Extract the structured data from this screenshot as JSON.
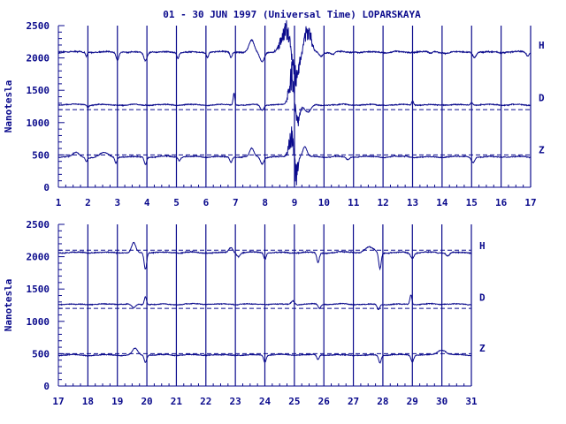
{
  "title": "01 - 30 JUN 1997 (Universal Time) LOPARSKAYA",
  "colors": {
    "trace": "#0a0a8c",
    "background": "#ffffff"
  },
  "chart_data": [
    {
      "type": "line",
      "ylabel": "Nanotesla",
      "ylim": [
        0,
        2500
      ],
      "yticks": [
        "0",
        "500",
        "1000",
        "1500",
        "2000",
        "2500"
      ],
      "xlim": [
        1,
        17
      ],
      "xticks": [
        "1",
        "2",
        "3",
        "4",
        "5",
        "6",
        "7",
        "8",
        "9",
        "10",
        "11",
        "12",
        "13",
        "14",
        "15",
        "16",
        "17"
      ],
      "grid": "vertical lines at each day",
      "series": [
        {
          "name": "H",
          "baseline": 2090,
          "noise": 18,
          "events": [
            [
              1.95,
              -60,
              0.04
            ],
            [
              3.0,
              -110,
              0.06
            ],
            [
              3.95,
              -130,
              0.08
            ],
            [
              5.05,
              -90,
              0.05
            ],
            [
              6.05,
              -80,
              0.05
            ],
            [
              6.85,
              -90,
              0.05
            ],
            [
              7.55,
              180,
              0.12
            ],
            [
              7.9,
              -140,
              0.1
            ],
            [
              8.7,
              400,
              0.2
            ],
            [
              9.05,
              -420,
              0.15
            ],
            [
              9.45,
              380,
              0.15
            ],
            [
              9.9,
              -60,
              0.08
            ],
            [
              10.3,
              -40,
              0.08
            ],
            [
              13.6,
              -30,
              0.1
            ],
            [
              15.1,
              -80,
              0.08
            ],
            [
              16.9,
              -60,
              0.06
            ]
          ]
        },
        {
          "name": "D",
          "baseline": 1275,
          "noise": 14,
          "dashed": 1200,
          "events": [
            [
              2.0,
              -40,
              0.05
            ],
            [
              6.95,
              180,
              0.04
            ],
            [
              7.9,
              -80,
              0.08
            ],
            [
              8.9,
              550,
              0.12
            ],
            [
              9.1,
              -300,
              0.1
            ],
            [
              9.45,
              -120,
              0.15
            ],
            [
              13.0,
              60,
              0.05
            ],
            [
              15.0,
              40,
              0.06
            ]
          ]
        },
        {
          "name": "Z",
          "baseline": 470,
          "noise": 14,
          "dashed": 500,
          "events": [
            [
              1.6,
              70,
              0.15
            ],
            [
              1.95,
              -60,
              0.05
            ],
            [
              2.55,
              60,
              0.2
            ],
            [
              2.95,
              -90,
              0.05
            ],
            [
              3.95,
              -110,
              0.06
            ],
            [
              5.1,
              -60,
              0.06
            ],
            [
              6.85,
              -80,
              0.06
            ],
            [
              7.55,
              130,
              0.1
            ],
            [
              7.9,
              -100,
              0.08
            ],
            [
              8.9,
              380,
              0.12
            ],
            [
              9.05,
              -400,
              0.08
            ],
            [
              9.35,
              150,
              0.1
            ],
            [
              10.8,
              -40,
              0.08
            ],
            [
              15.05,
              -80,
              0.08
            ]
          ]
        }
      ]
    },
    {
      "type": "line",
      "ylabel": "Nanotesla",
      "ylim": [
        0,
        2500
      ],
      "yticks": [
        "0",
        "500",
        "1000",
        "1500",
        "2000",
        "2500"
      ],
      "xlim": [
        17,
        31
      ],
      "xticks": [
        "17",
        "18",
        "19",
        "20",
        "21",
        "22",
        "23",
        "24",
        "25",
        "26",
        "27",
        "28",
        "29",
        "30",
        "31"
      ],
      "grid": "vertical lines at each day",
      "series": [
        {
          "name": "H",
          "baseline": 2065,
          "noise": 15,
          "dashed": 2100,
          "events": [
            [
              19.55,
              150,
              0.1
            ],
            [
              19.95,
              -250,
              0.06
            ],
            [
              22.85,
              80,
              0.1
            ],
            [
              23.1,
              -60,
              0.08
            ],
            [
              24.0,
              -100,
              0.06
            ],
            [
              25.8,
              -150,
              0.06
            ],
            [
              27.55,
              80,
              0.2
            ],
            [
              27.9,
              -250,
              0.06
            ],
            [
              29.0,
              -80,
              0.08
            ],
            [
              30.2,
              -50,
              0.08
            ]
          ]
        },
        {
          "name": "D",
          "baseline": 1265,
          "noise": 12,
          "dashed": 1200,
          "events": [
            [
              19.55,
              -60,
              0.1
            ],
            [
              19.95,
              120,
              0.05
            ],
            [
              24.95,
              60,
              0.08
            ],
            [
              25.85,
              -60,
              0.06
            ],
            [
              27.85,
              -80,
              0.06
            ],
            [
              28.95,
              150,
              0.05
            ]
          ]
        },
        {
          "name": "Z",
          "baseline": 480,
          "noise": 12,
          "dashed": 500,
          "events": [
            [
              19.6,
              100,
              0.12
            ],
            [
              19.95,
              -110,
              0.06
            ],
            [
              24.0,
              -110,
              0.06
            ],
            [
              25.8,
              -70,
              0.06
            ],
            [
              27.9,
              -120,
              0.06
            ],
            [
              29.0,
              -100,
              0.06
            ],
            [
              30.0,
              80,
              0.2
            ]
          ]
        }
      ]
    }
  ]
}
